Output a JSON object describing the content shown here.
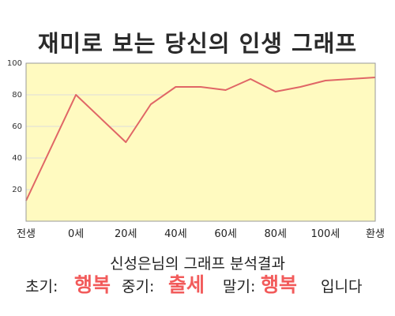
{
  "title": "재미로 보는 당신의 인생 그래프",
  "chart_data": {
    "type": "area",
    "x_categories": [
      "전생",
      "0세",
      "20세",
      "40세",
      "60세",
      "80세",
      "100세",
      "환생"
    ],
    "x_values": [
      -20,
      0,
      20,
      30,
      40,
      50,
      60,
      70,
      80,
      90,
      100,
      120
    ],
    "y_values": [
      13,
      80,
      50,
      74,
      85,
      85,
      83,
      90,
      82,
      85,
      89,
      91
    ],
    "yticks": [
      20,
      40,
      60,
      80,
      100
    ],
    "ylim": [
      0,
      100
    ],
    "grid": true,
    "colors": {
      "line": "#e06666",
      "fill": "#fffac0",
      "grid": "#dcdcdc",
      "axis": "#999999"
    }
  },
  "result": {
    "heading": "신성은님의 그래프 분석결과",
    "early_label": "초기:",
    "early_value": "행복",
    "middle_label": "중기:",
    "middle_value": "출세",
    "late_label": "말기:",
    "late_value": "행복",
    "suffix": "입니다"
  }
}
